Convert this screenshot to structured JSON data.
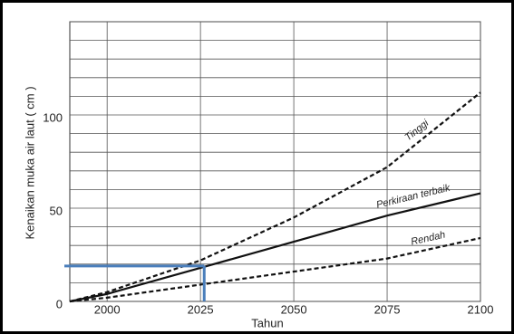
{
  "chart_data": {
    "type": "line",
    "x_label": "Tahun",
    "y_label": "Kenaikan muka air laut  ( cm )",
    "x": [
      1990,
      2000,
      2025,
      2050,
      2075,
      2100
    ],
    "series": [
      {
        "name": "Tinggi",
        "color": "#111111",
        "dashed": true,
        "values": [
          0,
          5,
          22,
          45,
          72,
          112
        ]
      },
      {
        "name": "Perkiraan terbaik",
        "color": "#111111",
        "dashed": false,
        "values": [
          0,
          4,
          18,
          32,
          46,
          58
        ]
      },
      {
        "name": "Rendah",
        "color": "#111111",
        "dashed": true,
        "values": [
          0,
          2,
          9,
          16,
          23,
          34
        ]
      }
    ],
    "xlim": [
      1990,
      2100
    ],
    "ylim": [
      0,
      150
    ],
    "xticks": [
      2000,
      2025,
      2050,
      2075,
      2100
    ],
    "yticks": [
      0,
      50,
      100
    ],
    "minor_yticks": [
      10,
      20,
      30,
      40,
      60,
      70,
      80,
      90,
      110,
      120,
      130,
      140,
      150
    ],
    "grid": true,
    "highlight": {
      "x": 2026,
      "y": 19,
      "color": "#4a7ebb"
    }
  }
}
